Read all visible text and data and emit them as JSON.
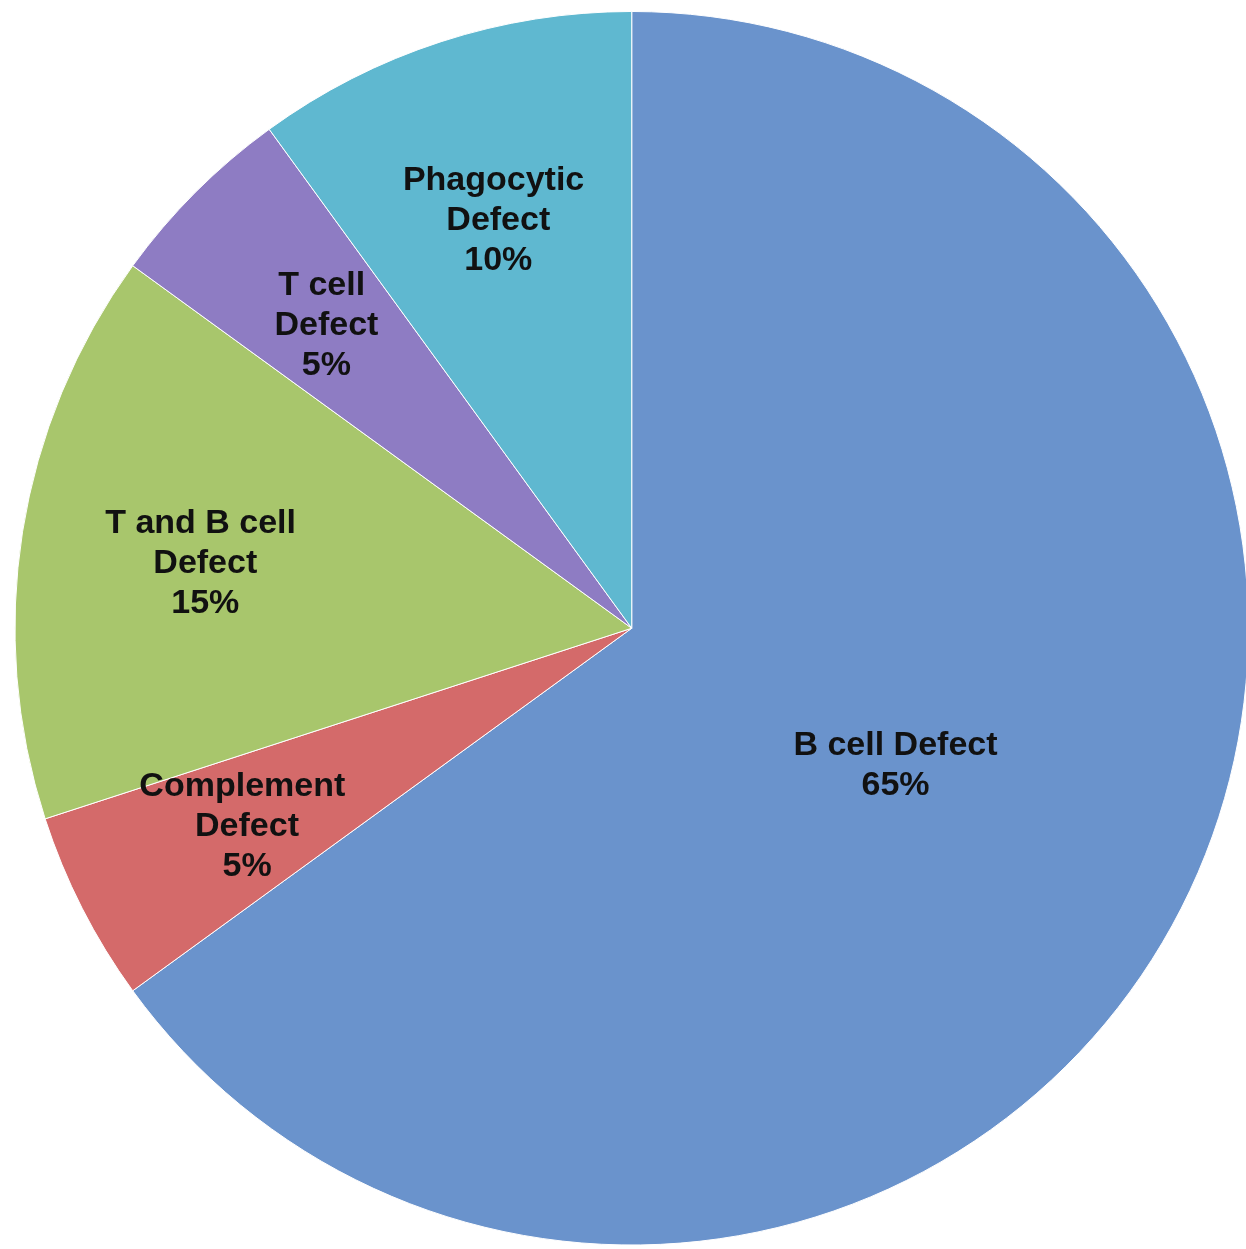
{
  "chart_data": {
    "type": "pie",
    "categories": [
      "B cell Defect",
      "Complement Defect",
      "T and B cell Defect",
      "T cell Defect",
      "Phagocytic Defect"
    ],
    "values": [
      65,
      5,
      15,
      5,
      10
    ],
    "value_labels": [
      "65%",
      "5%",
      "15%",
      "5%",
      "10%"
    ],
    "colors": [
      "#6a93cc",
      "#d46a6a",
      "#a8c66c",
      "#8e7cc3",
      "#5fb8d0"
    ]
  }
}
